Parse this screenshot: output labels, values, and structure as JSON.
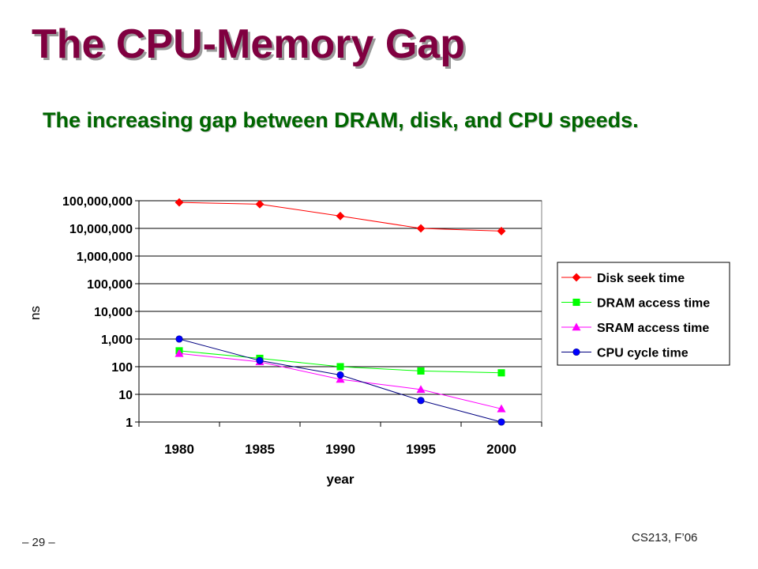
{
  "slide": {
    "title": "The CPU-Memory Gap",
    "subtitle": "The increasing gap between DRAM, disk, and CPU speeds.",
    "page_number": "– 29 –",
    "course": "CS213, F’06"
  },
  "chart_data": {
    "type": "line",
    "title": "",
    "xlabel": "year",
    "ylabel": "ns",
    "y_scale": "log",
    "ylim": [
      1,
      100000000
    ],
    "grid": true,
    "legend_position": "right",
    "categories": [
      "1980",
      "1985",
      "1990",
      "1995",
      "2000"
    ],
    "y_tick_labels": [
      "1",
      "10",
      "100",
      "1,000",
      "10,000",
      "100,000",
      "1,000,000",
      "10,000,000",
      "100,000,000"
    ],
    "series": [
      {
        "name": "Disk seek time",
        "color": "#ff0000",
        "marker": "diamond",
        "values": [
          87000000,
          75000000,
          28000000,
          10000000,
          8000000
        ]
      },
      {
        "name": "DRAM access time",
        "color": "#00ff00",
        "marker": "square",
        "values": [
          375,
          200,
          100,
          70,
          60
        ]
      },
      {
        "name": "SRAM access time",
        "color": "#ff00ff",
        "marker": "triangle",
        "values": [
          300,
          150,
          35,
          15,
          3
        ]
      },
      {
        "name": "CPU cycle time",
        "color": "#0000ff",
        "marker": "circle",
        "values": [
          1000,
          166,
          50,
          6,
          1
        ]
      }
    ]
  }
}
